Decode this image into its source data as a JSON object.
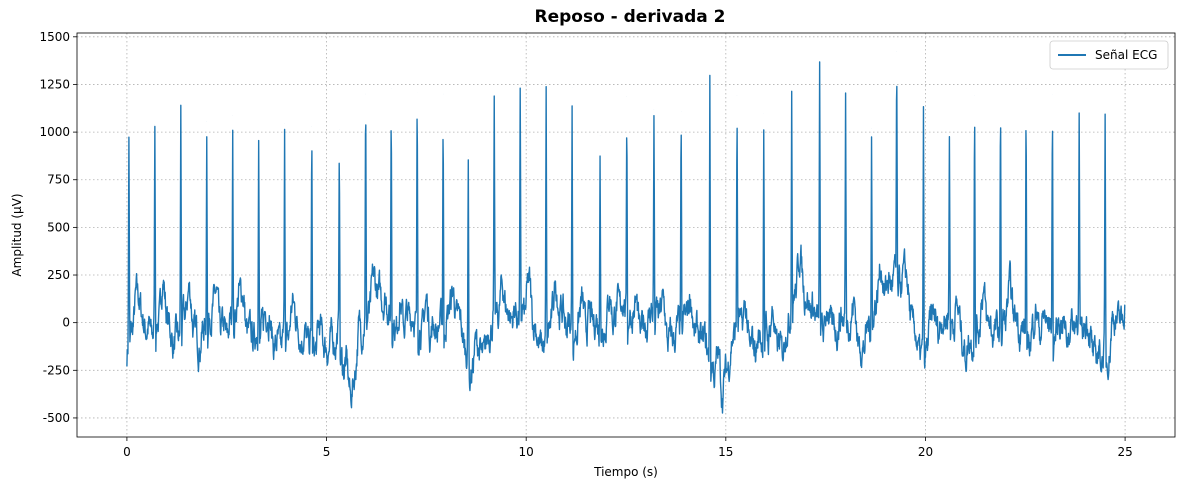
{
  "chart_data": {
    "type": "line",
    "title": "Reposo - derivada 2",
    "xlabel": "Tiempo (s)",
    "ylabel": "Amplitud (µV)",
    "xlim": [
      -1.25,
      26.25
    ],
    "ylim": [
      -600,
      1520
    ],
    "xticks": [
      0,
      5,
      10,
      15,
      20,
      25
    ],
    "yticks": [
      -500,
      -250,
      0,
      250,
      500,
      750,
      1000,
      1250,
      1500
    ],
    "grid": true,
    "grid_style": "dotted",
    "legend": {
      "position": "top-right",
      "entries": [
        "Señal ECG"
      ]
    },
    "series": [
      {
        "name": "Señal ECG",
        "color": "#1f77b4",
        "duration_s": 25,
        "baseline": [
          [
            0,
            -170
          ],
          [
            0.1,
            -30
          ],
          [
            0.3,
            40
          ],
          [
            0.6,
            -60
          ],
          [
            0.9,
            80
          ],
          [
            1.2,
            -120
          ],
          [
            1.5,
            60
          ],
          [
            1.8,
            -110
          ],
          [
            2.1,
            40
          ],
          [
            2.5,
            -60
          ],
          [
            2.8,
            90
          ],
          [
            3.1,
            -80
          ],
          [
            3.4,
            -20
          ],
          [
            3.8,
            -130
          ],
          [
            4.2,
            -20
          ],
          [
            4.5,
            -90
          ],
          [
            4.9,
            -160
          ],
          [
            5.3,
            -60
          ],
          [
            5.6,
            -470
          ],
          [
            5.8,
            -60
          ],
          [
            6.1,
            80
          ],
          [
            6.4,
            150
          ],
          [
            6.8,
            -60
          ],
          [
            7.1,
            50
          ],
          [
            7.4,
            -50
          ],
          [
            7.8,
            -20
          ],
          [
            8.3,
            40
          ],
          [
            8.6,
            -250
          ],
          [
            8.9,
            -200
          ],
          [
            9.2,
            60
          ],
          [
            9.6,
            40
          ],
          [
            10.1,
            60
          ],
          [
            10.4,
            -150
          ],
          [
            10.8,
            90
          ],
          [
            11.2,
            -80
          ],
          [
            11.6,
            20
          ],
          [
            12.0,
            -40
          ],
          [
            12.4,
            120
          ],
          [
            12.8,
            -60
          ],
          [
            13.2,
            70
          ],
          [
            13.6,
            -100
          ],
          [
            14.0,
            20
          ],
          [
            14.5,
            -120
          ],
          [
            14.9,
            -380
          ],
          [
            15.3,
            40
          ],
          [
            15.6,
            -150
          ],
          [
            16.0,
            -60
          ],
          [
            16.4,
            -150
          ],
          [
            16.8,
            230
          ],
          [
            17.2,
            60
          ],
          [
            17.6,
            -80
          ],
          [
            18.0,
            60
          ],
          [
            18.4,
            -150
          ],
          [
            18.8,
            120
          ],
          [
            19.2,
            240
          ],
          [
            19.5,
            150
          ],
          [
            19.9,
            -200
          ],
          [
            20.2,
            -60
          ],
          [
            20.6,
            60
          ],
          [
            21.0,
            -150
          ],
          [
            21.4,
            20
          ],
          [
            21.8,
            -60
          ],
          [
            22.2,
            60
          ],
          [
            22.6,
            -120
          ],
          [
            23.0,
            20
          ],
          [
            23.4,
            -100
          ],
          [
            23.8,
            30
          ],
          [
            24.2,
            -180
          ],
          [
            24.6,
            -150
          ],
          [
            25.0,
            80
          ]
        ],
        "beats": [
          [
            0.05,
            970
          ],
          [
            0.7,
            1040
          ],
          [
            1.35,
            1115
          ],
          [
            2.0,
            1055
          ],
          [
            2.65,
            1085
          ],
          [
            3.3,
            1005
          ],
          [
            3.95,
            1045
          ],
          [
            4.63,
            1030
          ],
          [
            5.32,
            1015
          ],
          [
            5.98,
            1200
          ],
          [
            6.62,
            1230
          ],
          [
            7.27,
            1210
          ],
          [
            7.92,
            1200
          ],
          [
            8.55,
            870
          ],
          [
            9.2,
            1050
          ],
          [
            9.85,
            1140
          ],
          [
            10.5,
            1175
          ],
          [
            11.15,
            1235
          ],
          [
            11.85,
            980
          ],
          [
            12.52,
            1185
          ],
          [
            13.2,
            1120
          ],
          [
            13.88,
            1110
          ],
          [
            14.6,
            1285
          ],
          [
            15.28,
            1190
          ],
          [
            15.95,
            1100
          ],
          [
            16.65,
            1260
          ],
          [
            17.35,
            1310
          ],
          [
            18.0,
            1155
          ],
          [
            18.65,
            1020
          ],
          [
            19.28,
            1425
          ],
          [
            19.95,
            1080
          ],
          [
            20.6,
            950
          ],
          [
            21.23,
            1190
          ],
          [
            21.88,
            1250
          ],
          [
            22.52,
            1230
          ],
          [
            23.18,
            1195
          ],
          [
            23.85,
            1060
          ],
          [
            24.5,
            980
          ]
        ]
      }
    ]
  }
}
